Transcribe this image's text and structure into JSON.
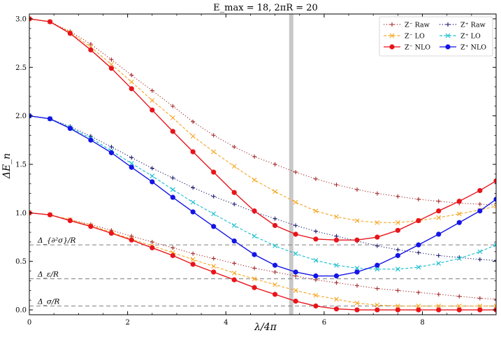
{
  "chart_data": {
    "type": "line",
    "title": "E_max = 18, 2πR = 20",
    "xlabel": "λ/4π",
    "ylabel": "ΔE_n",
    "xlim": [
      0,
      9.5
    ],
    "ylim": [
      -0.05,
      3.05
    ],
    "xticks": [
      0,
      2,
      4,
      6,
      8
    ],
    "yticks": [
      0.0,
      0.5,
      1.0,
      1.5,
      2.0,
      2.5,
      3.0
    ],
    "xtick_labels": [
      "0",
      "2",
      "4",
      "6",
      "8"
    ],
    "ytick_labels": [
      "0.0",
      "0.5",
      "1.0",
      "1.5",
      "2.0",
      "2.5",
      "3.0"
    ],
    "grid": false,
    "legend_position": "top-right",
    "vertical_band": {
      "x": 5.33,
      "color": "#c8c8c8"
    },
    "reference_lines": [
      {
        "label": "Δ_{∂²σ}/R",
        "y": 0.67
      },
      {
        "label": "Δ_ε/R",
        "y": 0.32
      },
      {
        "label": "Δ_σ/R",
        "y": 0.04
      }
    ],
    "series": [
      {
        "name": "Z⁻ Raw",
        "color": "#a52a2a",
        "marker": "+",
        "line": "dotted",
        "legend_order": 0,
        "curves": [
          {
            "x": [
              0,
              0.42,
              0.83,
              1.25,
              1.67,
              2.08,
              2.5,
              2.92,
              3.33,
              3.75,
              4.17,
              4.58,
              5.0,
              5.42,
              5.83,
              6.25,
              6.67,
              7.08,
              7.5,
              7.92,
              8.33,
              8.75,
              9.17,
              9.5
            ],
            "y": [
              3.0,
              2.97,
              2.87,
              2.74,
              2.58,
              2.42,
              2.26,
              2.1,
              1.94,
              1.8,
              1.68,
              1.58,
              1.5,
              1.42,
              1.35,
              1.29,
              1.24,
              1.2,
              1.17,
              1.14,
              1.12,
              1.1,
              1.09,
              1.08
            ]
          },
          {
            "x": [
              0,
              0.42,
              0.83,
              1.25,
              1.67,
              2.08,
              2.5,
              2.92,
              3.33,
              3.75,
              4.17,
              4.58,
              5.0,
              5.42,
              5.83,
              6.25,
              6.67,
              7.08,
              7.5,
              7.92,
              8.33,
              8.75,
              9.17,
              9.5
            ],
            "y": [
              1.0,
              0.98,
              0.93,
              0.88,
              0.82,
              0.76,
              0.7,
              0.64,
              0.58,
              0.53,
              0.48,
              0.43,
              0.39,
              0.35,
              0.31,
              0.28,
              0.25,
              0.22,
              0.2,
              0.18,
              0.16,
              0.14,
              0.12,
              0.11
            ]
          }
        ]
      },
      {
        "name": "Z⁺ Raw",
        "color": "#1a1a6e",
        "marker": "+",
        "line": "dotted",
        "legend_order": 1,
        "curves": [
          {
            "x": [
              0,
              0.42,
              0.83,
              1.25,
              1.67,
              2.08,
              2.5,
              2.92,
              3.33,
              3.75,
              4.17,
              4.58,
              5.0,
              5.42,
              5.83,
              6.25,
              6.67,
              7.08,
              7.5,
              7.92,
              8.33,
              8.75,
              9.17,
              9.5
            ],
            "y": [
              2.0,
              1.97,
              1.89,
              1.79,
              1.68,
              1.57,
              1.46,
              1.36,
              1.26,
              1.17,
              1.09,
              1.01,
              0.94,
              0.87,
              0.81,
              0.76,
              0.71,
              0.66,
              0.62,
              0.59,
              0.56,
              0.54,
              0.52,
              0.51
            ]
          }
        ]
      },
      {
        "name": "Z⁻ LO",
        "color": "#f5a623",
        "marker": "x",
        "line": "dashed",
        "legend_order": 2,
        "curves": [
          {
            "x": [
              0,
              0.42,
              0.83,
              1.25,
              1.67,
              2.08,
              2.5,
              2.92,
              3.33,
              3.75,
              4.17,
              4.58,
              5.0,
              5.42,
              5.83,
              6.25,
              6.67,
              7.08,
              7.5,
              7.92,
              8.33,
              8.75,
              9.17,
              9.5
            ],
            "y": [
              3.0,
              2.97,
              2.86,
              2.71,
              2.53,
              2.35,
              2.16,
              1.98,
              1.79,
              1.63,
              1.48,
              1.34,
              1.22,
              1.11,
              1.02,
              0.96,
              0.92,
              0.9,
              0.9,
              0.92,
              0.95,
              0.99,
              1.03,
              1.07
            ]
          },
          {
            "x": [
              0,
              0.42,
              0.83,
              1.25,
              1.67,
              2.08,
              2.5,
              2.92,
              3.33,
              3.75,
              4.17,
              4.58,
              5.0,
              5.42,
              5.83,
              6.25,
              6.67,
              7.08,
              7.5,
              7.92,
              8.33,
              8.75,
              9.17,
              9.5
            ],
            "y": [
              1.0,
              0.98,
              0.93,
              0.87,
              0.8,
              0.73,
              0.66,
              0.59,
              0.52,
              0.45,
              0.38,
              0.32,
              0.26,
              0.2,
              0.15,
              0.11,
              0.07,
              0.05,
              0.04,
              0.04,
              0.04,
              0.04,
              0.04,
              0.04
            ]
          }
        ]
      },
      {
        "name": "Z⁺ LO",
        "color": "#17becf",
        "marker": "x",
        "line": "dashed",
        "legend_order": 3,
        "curves": [
          {
            "x": [
              0,
              0.42,
              0.83,
              1.25,
              1.67,
              2.08,
              2.5,
              2.92,
              3.33,
              3.75,
              4.17,
              4.58,
              5.0,
              5.42,
              5.83,
              6.25,
              6.67,
              7.08,
              7.5,
              7.92,
              8.33,
              8.75,
              9.17,
              9.5
            ],
            "y": [
              2.0,
              1.97,
              1.88,
              1.77,
              1.64,
              1.51,
              1.38,
              1.24,
              1.11,
              0.99,
              0.87,
              0.76,
              0.66,
              0.58,
              0.51,
              0.46,
              0.43,
              0.42,
              0.42,
              0.44,
              0.48,
              0.53,
              0.6,
              0.67
            ]
          }
        ]
      },
      {
        "name": "Z⁻ NLO",
        "color": "#e8141b",
        "marker": "o",
        "line": "solid",
        "legend_order": 4,
        "curves": [
          {
            "x": [
              0,
              0.42,
              0.83,
              1.25,
              1.67,
              2.08,
              2.5,
              2.92,
              3.33,
              3.75,
              4.17,
              4.58,
              5.0,
              5.42,
              5.83,
              6.25,
              6.67,
              7.08,
              7.5,
              7.92,
              8.33,
              8.75,
              9.17,
              9.5
            ],
            "y": [
              3.0,
              2.97,
              2.85,
              2.68,
              2.49,
              2.28,
              2.06,
              1.84,
              1.63,
              1.42,
              1.21,
              1.02,
              0.87,
              0.78,
              0.73,
              0.72,
              0.72,
              0.75,
              0.82,
              0.92,
              1.02,
              1.12,
              1.23,
              1.33
            ]
          },
          {
            "x": [
              0,
              0.42,
              0.83,
              1.25,
              1.67,
              2.08,
              2.5,
              2.92,
              3.33,
              3.75,
              4.17,
              4.58,
              5.0,
              5.42,
              5.83,
              6.25,
              6.67,
              7.08,
              7.5,
              7.92,
              8.33,
              8.75,
              9.17,
              9.5
            ],
            "y": [
              1.0,
              0.98,
              0.92,
              0.86,
              0.79,
              0.72,
              0.64,
              0.56,
              0.47,
              0.39,
              0.31,
              0.23,
              0.16,
              0.09,
              0.04,
              0.01,
              0.0,
              0.0,
              0.0,
              0.0,
              0.0,
              0.0,
              0.0,
              0.0
            ]
          }
        ]
      },
      {
        "name": "Z⁺ NLO",
        "color": "#1414e6",
        "marker": "o",
        "line": "solid",
        "legend_order": 5,
        "curves": [
          {
            "x": [
              0,
              0.42,
              0.83,
              1.25,
              1.67,
              2.08,
              2.5,
              2.92,
              3.33,
              3.75,
              4.17,
              4.58,
              5.0,
              5.42,
              5.83,
              6.25,
              6.67,
              7.08,
              7.5,
              7.92,
              8.33,
              8.75,
              9.17,
              9.5
            ],
            "y": [
              2.0,
              1.97,
              1.87,
              1.75,
              1.62,
              1.47,
              1.32,
              1.16,
              1.01,
              0.86,
              0.71,
              0.57,
              0.46,
              0.39,
              0.35,
              0.35,
              0.39,
              0.46,
              0.56,
              0.67,
              0.78,
              0.9,
              1.02,
              1.14
            ]
          }
        ]
      }
    ]
  }
}
